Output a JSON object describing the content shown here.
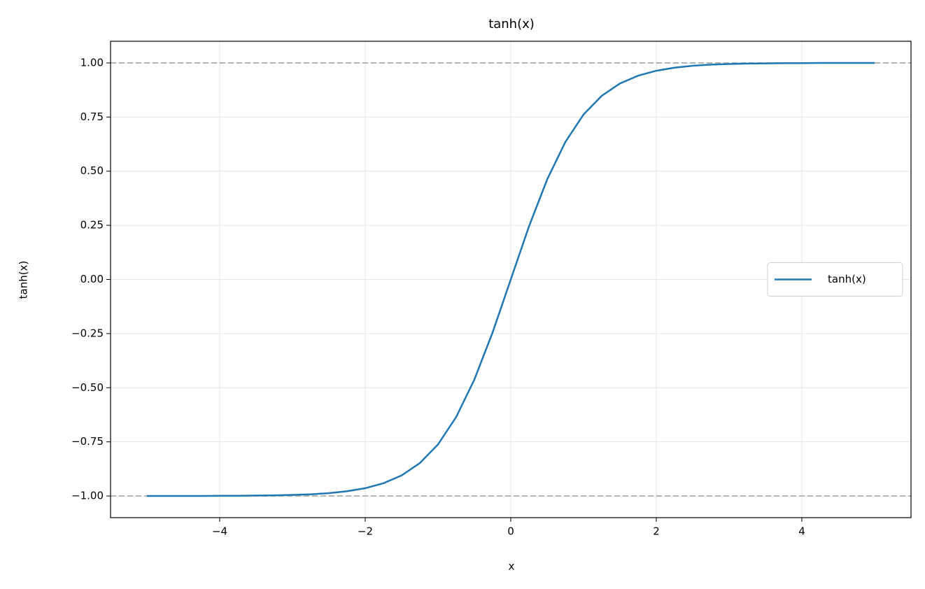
{
  "chart_data": {
    "type": "line",
    "title": "tanh(x)",
    "xlabel": "x",
    "ylabel": "tanh(x)",
    "x": [
      -5,
      -4.75,
      -4.5,
      -4.25,
      -4,
      -3.75,
      -3.5,
      -3.25,
      -3,
      -2.75,
      -2.5,
      -2.25,
      -2,
      -1.75,
      -1.5,
      -1.25,
      -1,
      -0.75,
      -0.5,
      -0.25,
      0,
      0.25,
      0.5,
      0.75,
      1,
      1.25,
      1.5,
      1.75,
      2,
      2.25,
      2.5,
      2.75,
      3,
      3.25,
      3.5,
      3.75,
      4,
      4.25,
      4.5,
      4.75,
      5
    ],
    "series": [
      {
        "name": "tanh(x)",
        "color": "#1f77b4",
        "values": [
          -1.0,
          -1.0,
          -1.0,
          -1.0,
          -0.999,
          -0.999,
          -0.998,
          -0.997,
          -0.995,
          -0.992,
          -0.987,
          -0.978,
          -0.964,
          -0.941,
          -0.905,
          -0.848,
          -0.762,
          -0.635,
          -0.462,
          -0.245,
          0,
          0.245,
          0.462,
          0.635,
          0.762,
          0.848,
          0.905,
          0.941,
          0.964,
          0.978,
          0.987,
          0.992,
          0.995,
          0.997,
          0.998,
          0.999,
          0.999,
          1.0,
          1.0,
          1.0,
          1.0
        ]
      }
    ],
    "hlines": [
      1,
      -1
    ],
    "hline_color": "#b3b3b3",
    "xlim": [
      -5.5,
      5.5
    ],
    "ylim": [
      -1.1,
      1.1
    ],
    "xticks": [
      {
        "value": -4,
        "label": "−4"
      },
      {
        "value": -2,
        "label": "−2"
      },
      0,
      2,
      4
    ],
    "yticks": [
      {
        "value": -1,
        "label": "−1.00"
      },
      {
        "value": -0.75,
        "label": "−0.75"
      },
      {
        "value": -0.5,
        "label": "−0.50"
      },
      {
        "value": -0.25,
        "label": "−0.25"
      },
      {
        "value": 0,
        "label": "0.00"
      },
      {
        "value": 0.25,
        "label": "0.25"
      },
      {
        "value": 0.5,
        "label": "0.50"
      },
      {
        "value": 0.75,
        "label": "0.75"
      },
      {
        "value": 1,
        "label": "1.00"
      }
    ],
    "grid": true,
    "legend": "center right"
  }
}
